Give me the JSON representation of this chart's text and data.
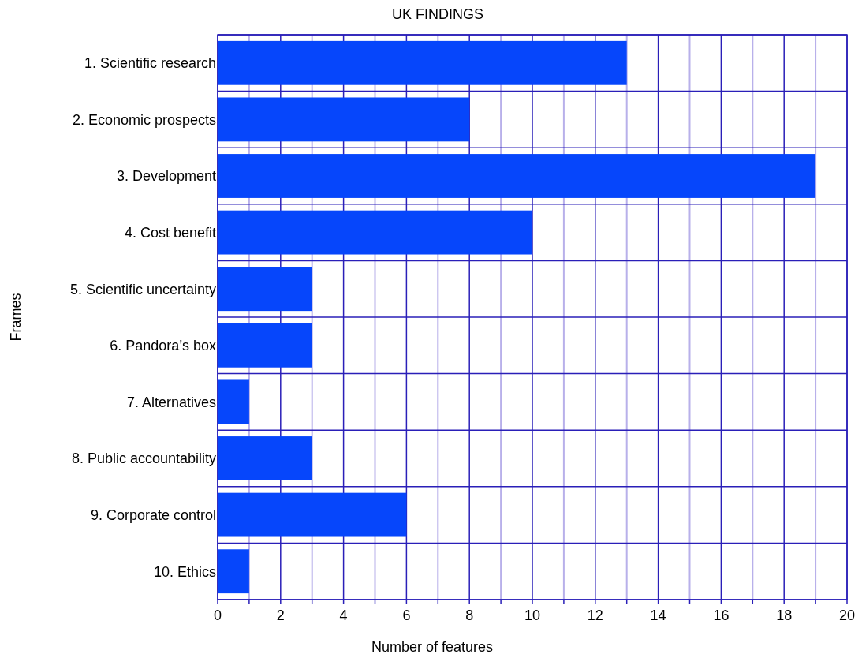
{
  "chart_data": {
    "type": "bar",
    "orientation": "horizontal",
    "title": "UK FINDINGS",
    "xlabel": "Number of features",
    "ylabel": "Frames",
    "categories": [
      "1. Scientific research",
      "2. Economic prospects",
      "3. Development",
      "4. Cost benefit",
      "5. Scientific uncertainty",
      "6. Pandora’s box",
      "7. Alternatives",
      "8. Public accountability",
      "9. Corporate control",
      "10. Ethics"
    ],
    "values": [
      13,
      8,
      19,
      10,
      3,
      3,
      1,
      3,
      6,
      1
    ],
    "color": "#0646fb",
    "xlim": [
      0,
      20
    ],
    "xticks": [
      0,
      {
        "value": 1,
        "label": null
      },
      2,
      {
        "value": 3,
        "label": null
      },
      4,
      {
        "value": 5,
        "label": null
      },
      6,
      {
        "value": 7,
        "label": null
      },
      8,
      {
        "value": 9,
        "label": null
      },
      10,
      {
        "value": 11,
        "label": null
      },
      12,
      {
        "value": 13,
        "label": null
      },
      14,
      {
        "value": 15,
        "label": null
      },
      16,
      {
        "value": 17,
        "label": null
      },
      18,
      {
        "value": 19,
        "label": null
      },
      20
    ],
    "grid": true
  }
}
